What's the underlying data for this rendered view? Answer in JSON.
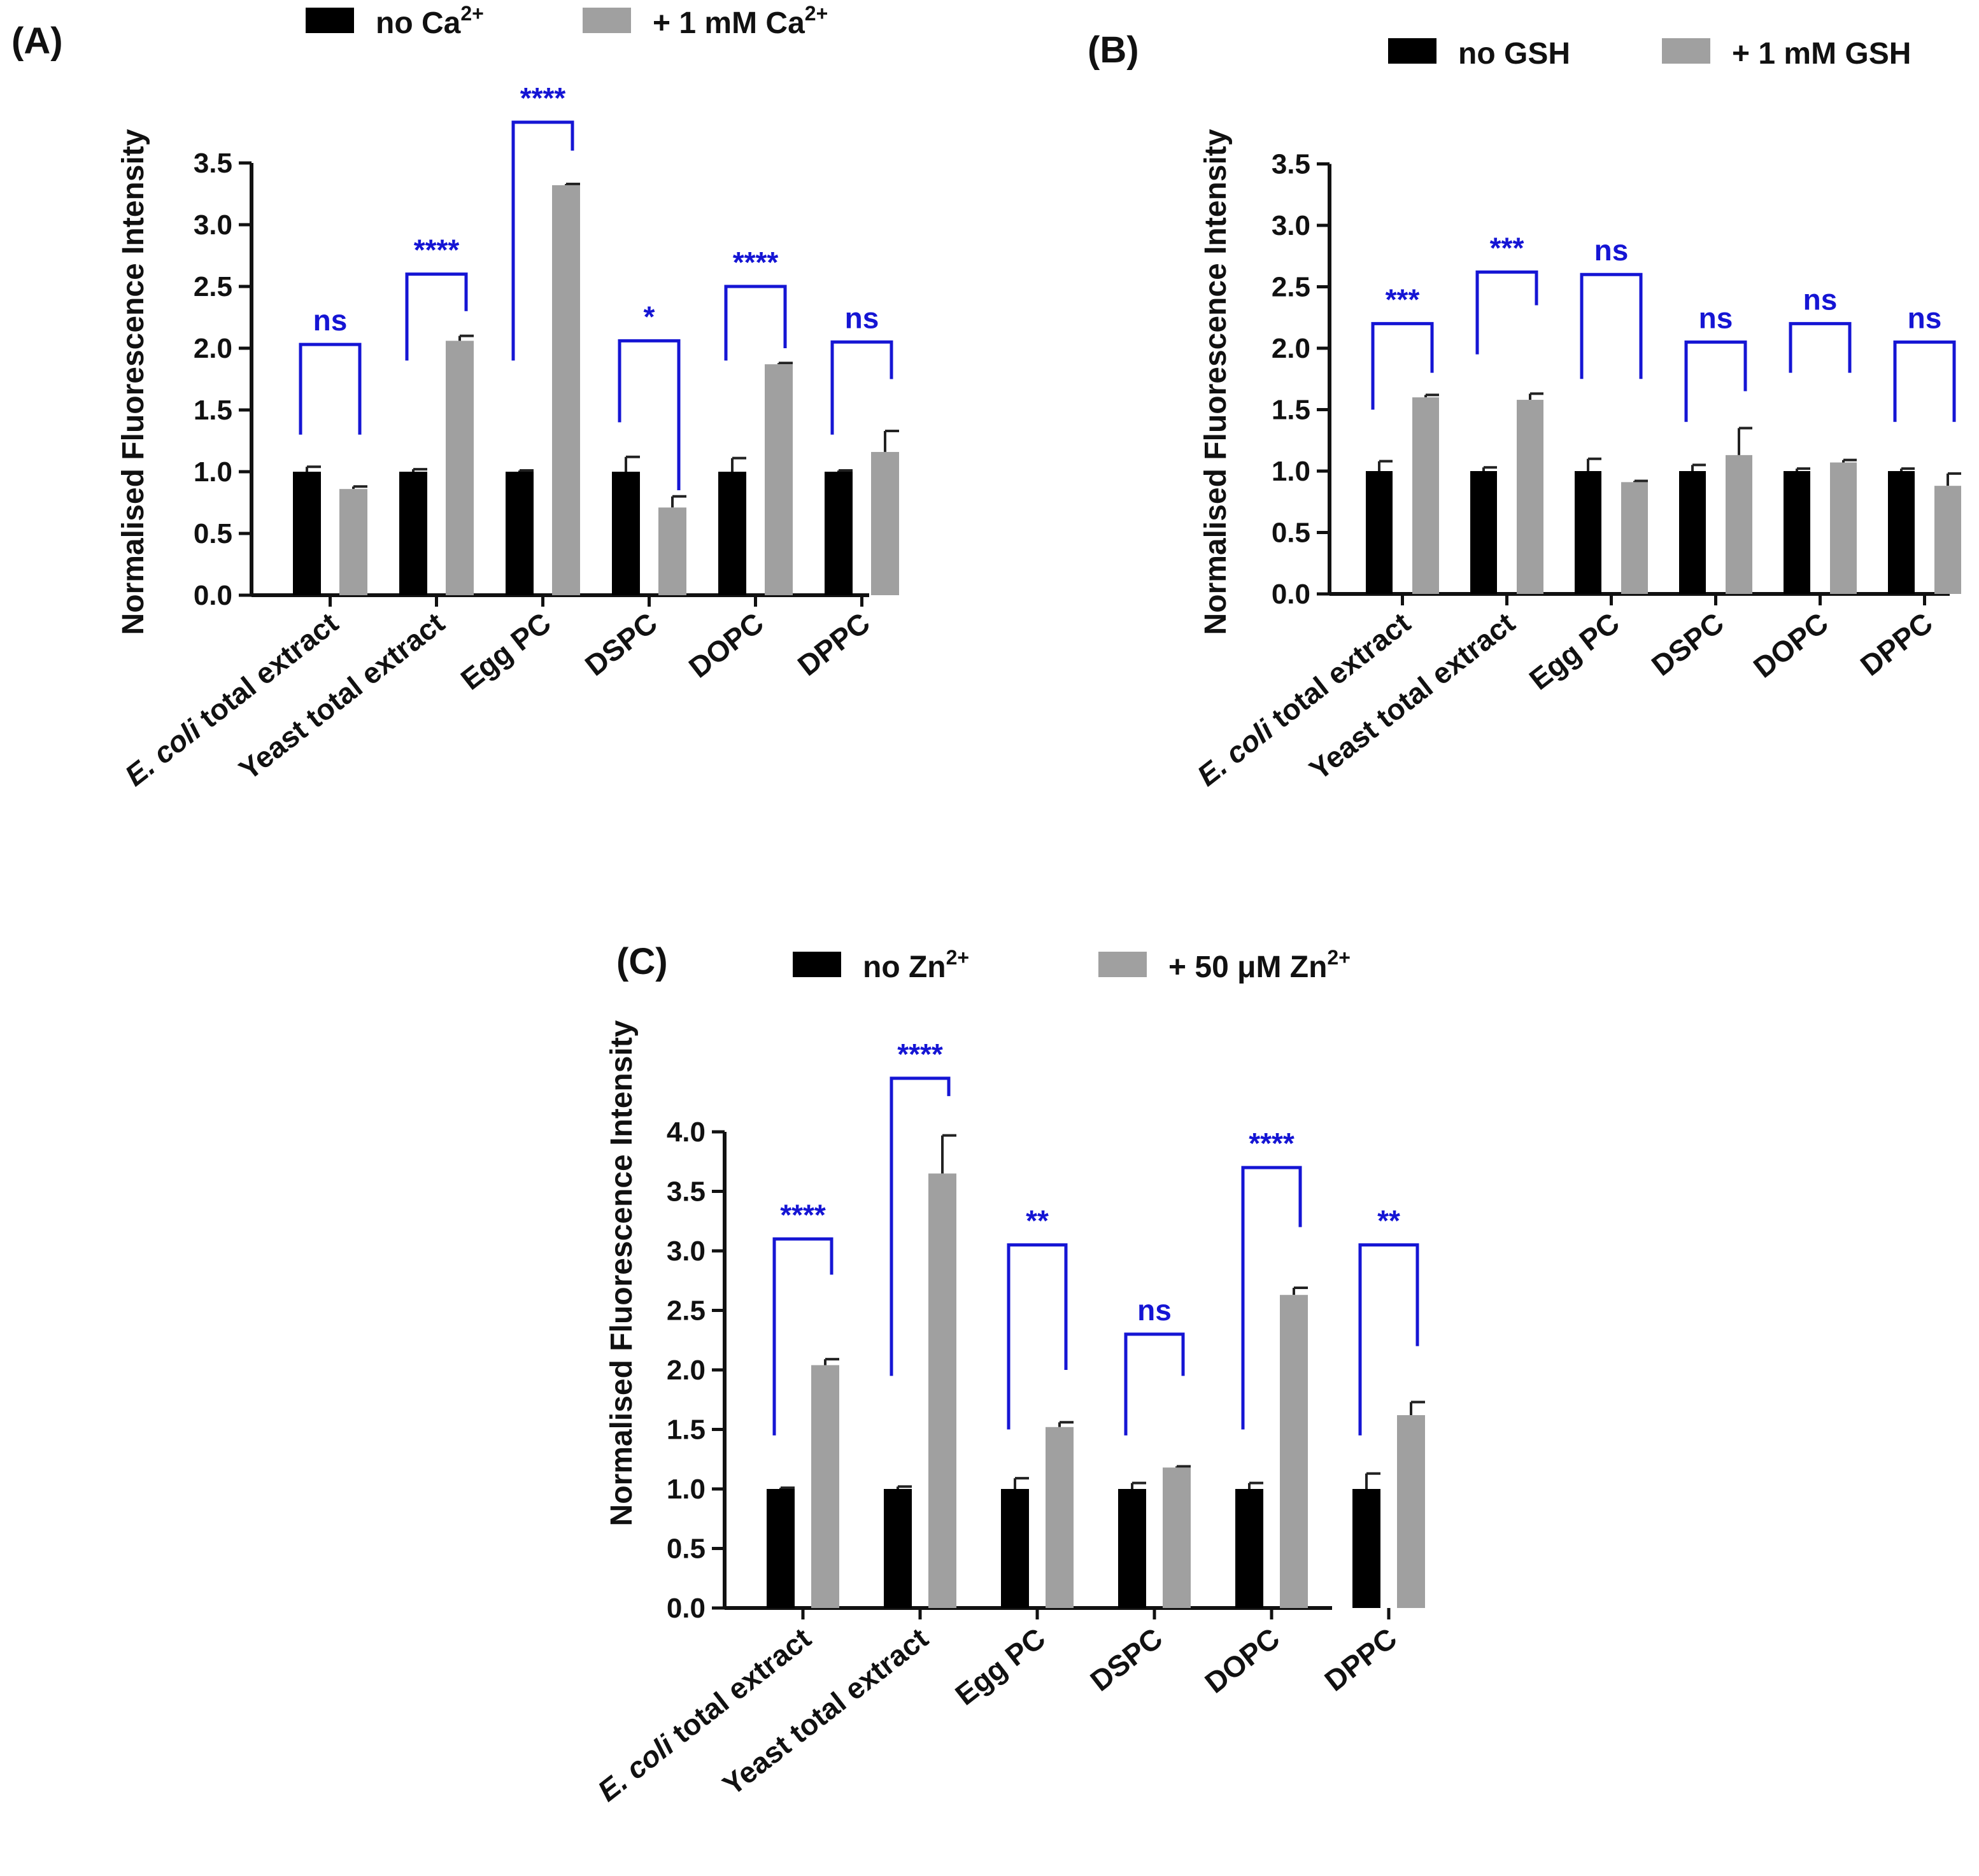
{
  "chart_data": [
    {
      "type": "bar",
      "panel_label": "(A)",
      "title": "",
      "xlabel": "",
      "ylabel": "Normalised Fluorescence Intensity",
      "ylim": [
        0,
        3.5
      ],
      "yticks": [
        "0.0",
        "0.5",
        "1.0",
        "1.5",
        "2.0",
        "2.5",
        "3.0",
        "3.5"
      ],
      "categories": [
        {
          "italic": "E. coli",
          "text": " total extract"
        },
        {
          "text": "Yeast total extract"
        },
        {
          "text": "Egg PC"
        },
        {
          "text": "DSPC"
        },
        {
          "text": "DOPC"
        },
        {
          "text": "DPPC"
        }
      ],
      "series": [
        {
          "name": "no Ca",
          "sup": "2+",
          "color": "#000000",
          "values": [
            1.0,
            1.0,
            1.0,
            1.0,
            1.0,
            1.0
          ],
          "errors": [
            0.04,
            0.02,
            0.01,
            0.12,
            0.11,
            0.01
          ]
        },
        {
          "name": "+ 1 mM Ca",
          "sup": "2+",
          "color": "#a0a0a0",
          "values": [
            0.86,
            2.06,
            3.32,
            0.71,
            1.87,
            1.16
          ],
          "errors": [
            0.02,
            0.04,
            0.01,
            0.09,
            0.01,
            0.17
          ]
        }
      ],
      "annotations": [
        "ns",
        "****",
        "****",
        "*",
        "****",
        "ns"
      ],
      "bracket_tops": [
        2.03,
        2.6,
        3.83,
        2.06,
        2.5,
        2.05
      ],
      "bracket_left_ends": [
        1.3,
        1.9,
        1.9,
        1.4,
        1.9,
        1.3
      ],
      "bracket_right_ends": [
        1.3,
        2.3,
        3.6,
        0.85,
        2.0,
        1.75
      ]
    },
    {
      "type": "bar",
      "panel_label": "(B)",
      "title": "",
      "xlabel": "",
      "ylabel": "Normalised Fluorescence Intensity",
      "ylim": [
        0,
        3.5
      ],
      "yticks": [
        "0.0",
        "0.5",
        "1.0",
        "1.5",
        "2.0",
        "2.5",
        "3.0",
        "3.5"
      ],
      "categories": [
        {
          "italic": "E. coli",
          "text": " total extract"
        },
        {
          "text": "Yeast total extract"
        },
        {
          "text": "Egg PC"
        },
        {
          "text": "DSPC"
        },
        {
          "text": "DOPC"
        },
        {
          "text": "DPPC"
        }
      ],
      "series": [
        {
          "name": "no GSH",
          "sup": "",
          "color": "#000000",
          "values": [
            1.0,
            1.0,
            1.0,
            1.0,
            1.0,
            1.0
          ],
          "errors": [
            0.08,
            0.03,
            0.1,
            0.05,
            0.02,
            0.02
          ]
        },
        {
          "name": "+ 1 mM GSH",
          "sup": "",
          "color": "#a0a0a0",
          "values": [
            1.6,
            1.58,
            0.91,
            1.13,
            1.07,
            0.88
          ],
          "errors": [
            0.02,
            0.05,
            0.01,
            0.22,
            0.02,
            0.1
          ]
        }
      ],
      "annotations": [
        "***",
        "***",
        "ns",
        "ns",
        "ns",
        "ns"
      ],
      "bracket_tops": [
        2.2,
        2.62,
        2.6,
        2.05,
        2.2,
        2.05
      ],
      "bracket_left_ends": [
        1.5,
        1.95,
        1.75,
        1.4,
        1.8,
        1.4
      ],
      "bracket_right_ends": [
        1.8,
        2.35,
        1.75,
        1.65,
        1.8,
        1.4
      ]
    },
    {
      "type": "bar",
      "panel_label": "(C)",
      "title": "",
      "xlabel": "",
      "ylabel": "Normalised Fluorescence Intensity",
      "ylim": [
        0,
        4.0
      ],
      "yticks": [
        "0.0",
        "0.5",
        "1.0",
        "1.5",
        "2.0",
        "2.5",
        "3.0",
        "3.5",
        "4.0"
      ],
      "categories": [
        {
          "italic": "E. coli",
          "text": " total extract"
        },
        {
          "text": "Yeast total extract"
        },
        {
          "text": "Egg PC"
        },
        {
          "text": "DSPC"
        },
        {
          "text": "DOPC"
        },
        {
          "text": "DPPC"
        }
      ],
      "series": [
        {
          "name": "no Zn",
          "sup": "2+",
          "color": "#000000",
          "values": [
            1.0,
            1.0,
            1.0,
            1.0,
            1.0,
            1.0
          ],
          "errors": [
            0.01,
            0.02,
            0.09,
            0.05,
            0.05,
            0.13
          ]
        },
        {
          "name": "+ 50 μM Zn",
          "sup": "2+",
          "color": "#a0a0a0",
          "values": [
            2.04,
            3.65,
            1.52,
            1.18,
            2.63,
            1.62
          ],
          "errors": [
            0.05,
            0.32,
            0.04,
            0.01,
            0.06,
            0.11
          ]
        }
      ],
      "annotations": [
        "****",
        "****",
        "**",
        "ns",
        "****",
        "**"
      ],
      "bracket_tops": [
        3.1,
        4.45,
        3.05,
        2.3,
        3.7,
        3.05
      ],
      "bracket_left_ends": [
        1.45,
        1.95,
        1.5,
        1.45,
        1.5,
        1.45
      ],
      "bracket_right_ends": [
        2.8,
        4.3,
        2.0,
        1.95,
        3.2,
        2.2
      ]
    }
  ]
}
